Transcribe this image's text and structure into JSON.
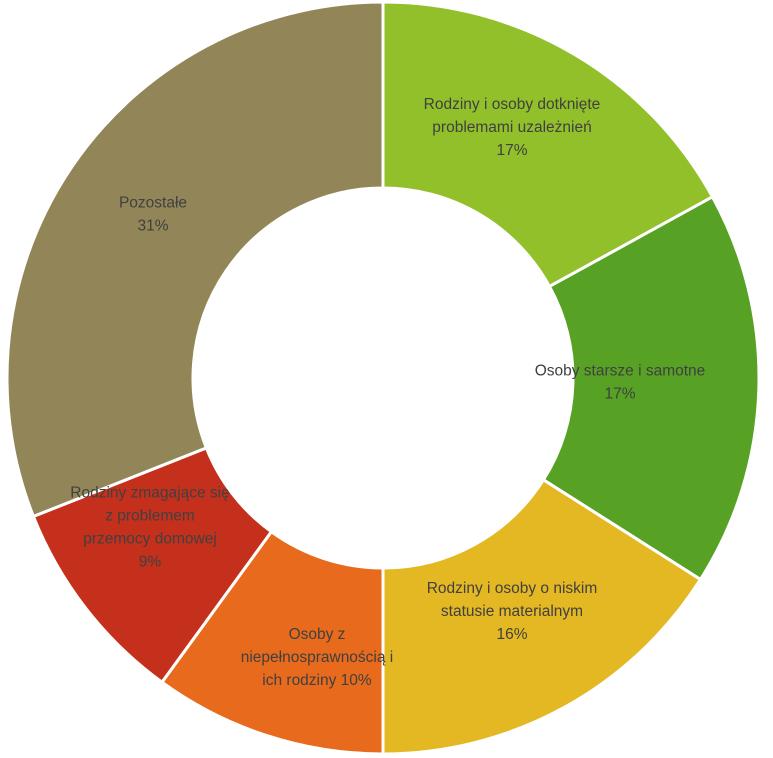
{
  "chart_data": {
    "type": "pie",
    "variant": "donut",
    "title": "",
    "legend": "none",
    "slices": [
      {
        "label_lines": [
          "Rodziny i osoby dotknięte",
          "problemami uzależnień"
        ],
        "percent_text": "17%",
        "value": 17,
        "color": "#92C02A"
      },
      {
        "label_lines": [
          "Osoby starsze i samotne"
        ],
        "percent_text": "17%",
        "value": 17,
        "color": "#57A225"
      },
      {
        "label_lines": [
          "Rodziny i osoby o niskim",
          "statusie materialnym"
        ],
        "percent_text": "16%",
        "value": 16,
        "color": "#E4B823"
      },
      {
        "label_lines": [
          "Osoby z",
          "niepełnosprawnością i",
          "ich rodziny 10%"
        ],
        "percent_text": "",
        "value": 10,
        "color": "#E86A1C"
      },
      {
        "label_lines": [
          "Rodziny zmagające się",
          "z problemem",
          "przemocy domowej"
        ],
        "percent_text": "9%",
        "value": 9,
        "color": "#C5301C"
      },
      {
        "label_lines": [
          "Pozostałe"
        ],
        "percent_text": "31%",
        "value": 31,
        "color": "#928659"
      }
    ]
  }
}
